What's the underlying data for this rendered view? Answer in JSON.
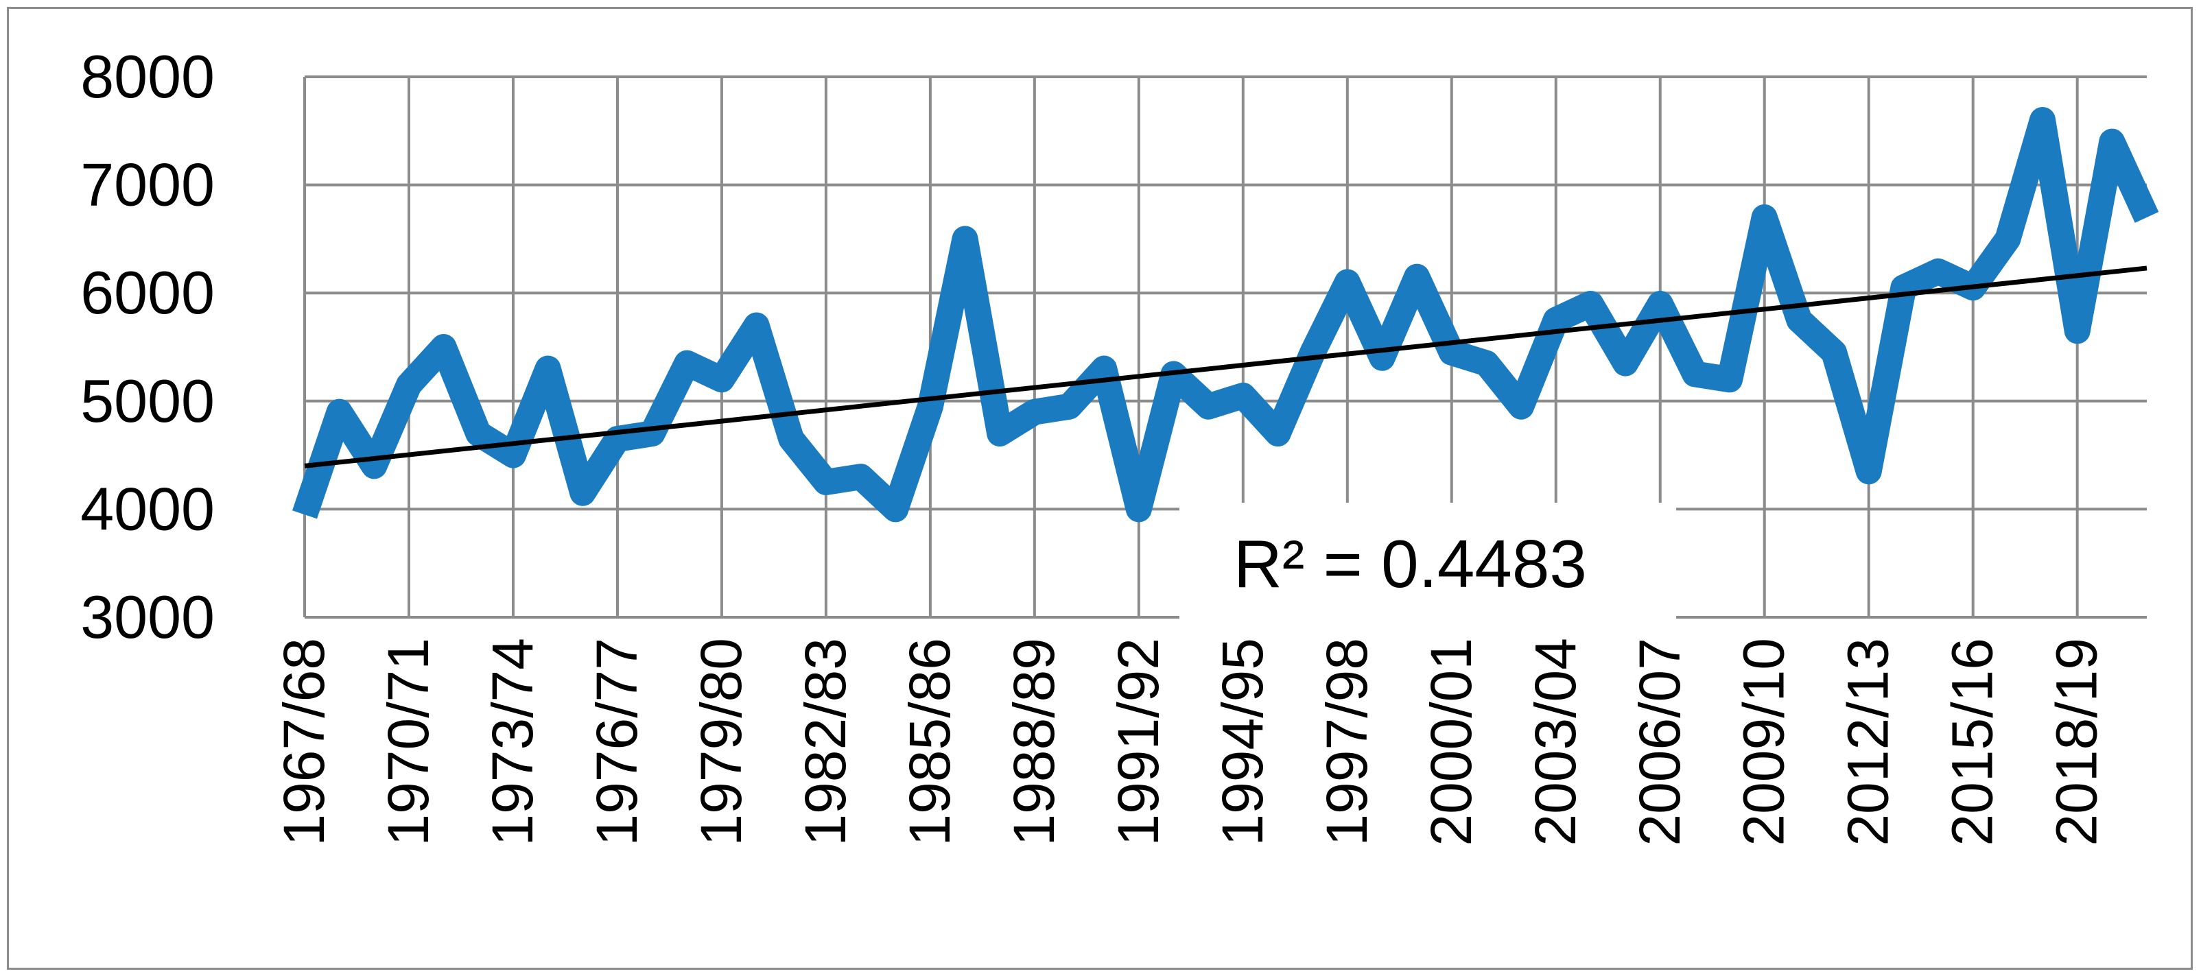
{
  "chart_data": {
    "type": "line",
    "title": "",
    "xlabel": "",
    "ylabel": "",
    "ylim": [
      3000,
      8000
    ],
    "yticks": [
      3000,
      4000,
      5000,
      6000,
      7000,
      8000
    ],
    "grid": true,
    "legend": "none",
    "x_tick_labels": [
      "1967/68",
      "1970/71",
      "1973/74",
      "1976/77",
      "1979/80",
      "1982/83",
      "1985/86",
      "1988/89",
      "1991/92",
      "1994/95",
      "1997/98",
      "2000/01",
      "2003/04",
      "2006/07",
      "2009/10",
      "2012/13",
      "2015/16",
      "2018/19"
    ],
    "categories": [
      "1967/68",
      "1968/69",
      "1969/70",
      "1970/71",
      "1971/72",
      "1972/73",
      "1973/74",
      "1974/75",
      "1975/76",
      "1976/77",
      "1977/78",
      "1978/79",
      "1979/80",
      "1980/81",
      "1981/82",
      "1982/83",
      "1983/84",
      "1984/85",
      "1985/86",
      "1986/87",
      "1987/88",
      "1988/89",
      "1989/90",
      "1990/91",
      "1991/92",
      "1992/93",
      "1993/94",
      "1994/95",
      "1995/96",
      "1996/97",
      "1997/98",
      "1998/99",
      "1999/00",
      "2000/01",
      "2001/02",
      "2002/03",
      "2003/04",
      "2004/05",
      "2005/06",
      "2006/07",
      "2007/08",
      "2008/09",
      "2009/10",
      "2010/11",
      "2011/12",
      "2012/13",
      "2013/14",
      "2014/15",
      "2015/16",
      "2016/17",
      "2017/18",
      "2018/19",
      "2019/20",
      "2020/21"
    ],
    "series": [
      {
        "color": "#1b7bc0",
        "values": [
          3950,
          4900,
          4400,
          5150,
          5500,
          4700,
          4500,
          5300,
          4150,
          4650,
          4700,
          5350,
          5200,
          5700,
          4650,
          4250,
          4300,
          4000,
          4950,
          6500,
          4700,
          4900,
          4950,
          5300,
          4000,
          5250,
          4950,
          5050,
          4700,
          5450,
          6100,
          5400,
          6150,
          5450,
          5350,
          4950,
          5750,
          5900,
          5350,
          5900,
          5250,
          5200,
          6700,
          5750,
          5450,
          4350,
          6050,
          6200,
          6050,
          6500,
          7600,
          5650,
          7400,
          6700
        ]
      }
    ],
    "trendline": {
      "type": "linear",
      "color": "#000000",
      "start": 4400,
      "end": 6230,
      "label": "R² = 0.4483"
    }
  }
}
